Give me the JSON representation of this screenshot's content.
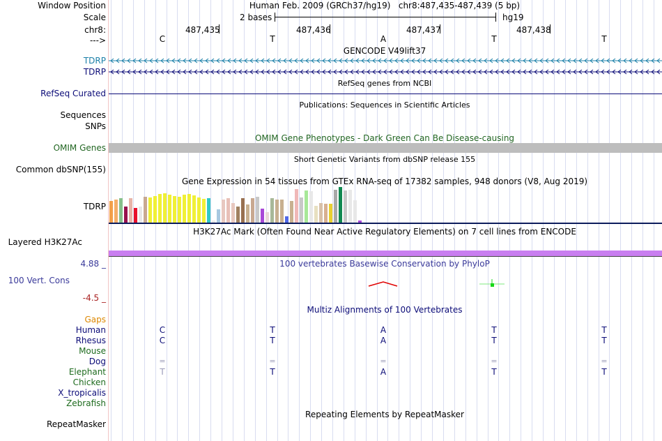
{
  "labels": {
    "window_position": "Window Position",
    "scale": "Scale",
    "chr": "chr8:",
    "strand": "--->",
    "tdrp_1": "TDRP",
    "tdrp_2": "TDRP",
    "refseq": "RefSeq Curated",
    "sequences": "Sequences",
    "snps": "SNPs",
    "omim": "OMIM Genes",
    "common_dbsnp": "Common dbSNP(155)",
    "gtex_tdrp": "TDRP",
    "layered": "Layered H3K27Ac",
    "cons_max": "4.88 _",
    "cons_name": "100 Vert. Cons",
    "cons_min": "-4.5 _",
    "gaps": "Gaps",
    "human": "Human",
    "rhesus": "Rhesus",
    "mouse": "Mouse",
    "dog": "Dog",
    "elephant": "Elephant",
    "chicken": "Chicken",
    "xtrop": "X_tropicalis",
    "zebrafish": "Zebrafish",
    "repeatmasker": "RepeatMasker"
  },
  "colors": {
    "label_default": "#000000",
    "tdrp_teal": "#1a7fa8",
    "navy": "#0c0c78",
    "omim_green": "#226622",
    "cons_blue": "#3a3a9a",
    "cons_red": "#aa2222",
    "gaps_orange": "#dd8800",
    "species_green": "#1e6b1e",
    "h3k27ac": "#c97ef0"
  },
  "header": {
    "assembly": "Human Feb. 2009 (GRCh37/hg19)",
    "position": "chr8:487,435-487,439 (5 bp)",
    "scale_text": "2 bases",
    "scale_db": "hg19",
    "coords": [
      "487,435",
      "487,436",
      "487,437",
      "487,438"
    ],
    "bases": [
      "C",
      "T",
      "A",
      "T",
      "T"
    ]
  },
  "tracks": {
    "gencode_title": "GENCODE V49lift37",
    "refseq_title": "RefSeq genes from NCBI",
    "publications_title": "Publications: Sequences in Scientific Articles",
    "omim_title": "OMIM Gene Phenotypes - Dark Green Can Be Disease-causing",
    "dbsnp_title": "Short Genetic Variants from dbSNP release 155",
    "gtex_title": "Gene Expression in 54 tissues from GTEx RNA-seq of 17382 samples, 948 donors (V8, Aug 2019)",
    "h3k27ac_title": "H3K27Ac Mark (Often Found Near Active Regulatory Elements) on 7 cell lines from ENCODE",
    "phylop_title": "100 vertebrates Basewise Conservation by PhyloP",
    "multiz_title": "Multiz Alignments of 100 Vertebrates",
    "repeat_title": "Repeating Elements by RepeatMasker"
  },
  "alignment": {
    "human": [
      "C",
      "T",
      "A",
      "T",
      "T"
    ],
    "rhesus": [
      "C",
      "T",
      "A",
      "T",
      "T"
    ],
    "dog": [
      "=",
      "=",
      "=",
      "=",
      "="
    ],
    "elephant": [
      "T",
      "T",
      "A",
      "T",
      "T"
    ]
  },
  "gtex": {
    "bars": [
      {
        "h": 0.6,
        "c": "#f2a04a"
      },
      {
        "h": 0.65,
        "c": "#f4ae6a"
      },
      {
        "h": 0.68,
        "c": "#86c08c"
      },
      {
        "h": 0.45,
        "c": "#98114e"
      },
      {
        "h": 0.68,
        "c": "#e8b4a8"
      },
      {
        "h": 0.42,
        "c": "#e8102c"
      },
      {
        "h": 0.45,
        "c": "#e8e8e8"
      },
      {
        "h": 0.72,
        "c": "#c8a890"
      },
      {
        "h": 0.7,
        "c": "#f0f036"
      },
      {
        "h": 0.75,
        "c": "#f0f036"
      },
      {
        "h": 0.8,
        "c": "#f0f036"
      },
      {
        "h": 0.82,
        "c": "#f0f036"
      },
      {
        "h": 0.78,
        "c": "#f0f036"
      },
      {
        "h": 0.75,
        "c": "#f0f036"
      },
      {
        "h": 0.72,
        "c": "#f0f036"
      },
      {
        "h": 0.78,
        "c": "#f0f036"
      },
      {
        "h": 0.8,
        "c": "#f0f036"
      },
      {
        "h": 0.76,
        "c": "#f0f036"
      },
      {
        "h": 0.7,
        "c": "#f0f036"
      },
      {
        "h": 0.66,
        "c": "#f0f036"
      },
      {
        "h": 0.68,
        "c": "#30c8c8"
      },
      {
        "h": 0.05,
        "c": "#e8e8e8"
      },
      {
        "h": 0.38,
        "c": "#a8c8e0"
      },
      {
        "h": 0.65,
        "c": "#e8c8c0"
      },
      {
        "h": 0.68,
        "c": "#e8c0b8"
      },
      {
        "h": 0.55,
        "c": "#e8c8c0"
      },
      {
        "h": 0.45,
        "c": "#a08060"
      },
      {
        "h": 0.68,
        "c": "#987050"
      },
      {
        "h": 0.5,
        "c": "#c8b090"
      },
      {
        "h": 0.68,
        "c": "#c8a890"
      },
      {
        "h": 0.72,
        "c": "#c8c8c8"
      },
      {
        "h": 0.4,
        "c": "#a848d8"
      },
      {
        "h": 0.3,
        "c": "#e8d8d8"
      },
      {
        "h": 0.68,
        "c": "#a8b898"
      },
      {
        "h": 0.65,
        "c": "#c8b090"
      },
      {
        "h": 0.65,
        "c": "#c8b090"
      },
      {
        "h": 0.18,
        "c": "#5068e8"
      },
      {
        "h": 0.6,
        "c": "#c8b090"
      },
      {
        "h": 0.95,
        "c": "#f0b8b8"
      },
      {
        "h": 0.7,
        "c": "#c8c8c8"
      },
      {
        "h": 0.9,
        "c": "#a8e898"
      },
      {
        "h": 0.88,
        "c": "#e8e8e8"
      },
      {
        "h": 0.48,
        "c": "#e8e0c0"
      },
      {
        "h": 0.55,
        "c": "#d8c0a8"
      },
      {
        "h": 0.52,
        "c": "#d8b090"
      },
      {
        "h": 0.52,
        "c": "#e8d030"
      },
      {
        "h": 0.92,
        "c": "#a8a8a8"
      },
      {
        "h": 1.0,
        "c": "#108850"
      },
      {
        "h": 0.9,
        "c": "#c8c8c8"
      },
      {
        "h": 0.92,
        "c": "#e8e8e8"
      },
      {
        "h": 0.62,
        "c": "#e8e8e8"
      },
      {
        "h": 0.06,
        "c": "#a848d8"
      }
    ]
  }
}
